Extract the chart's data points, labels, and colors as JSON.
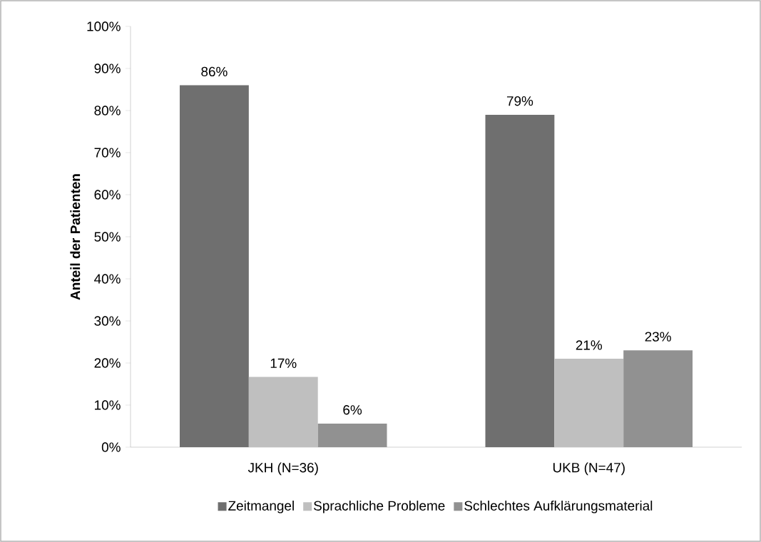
{
  "chart_data": {
    "type": "bar",
    "ylabel": "Anteil der Patienten",
    "categories": [
      "JKH (N=36)",
      "UKB (N=47)"
    ],
    "series": [
      {
        "name": "Zeitmangel",
        "color": "#6f6f6f",
        "values": [
          86,
          79
        ],
        "value_labels": [
          "86%",
          "79%"
        ]
      },
      {
        "name": "Sprachliche Probleme",
        "color": "#bfbfbf",
        "values": [
          16.7,
          21
        ],
        "value_labels": [
          "17%",
          "21%"
        ]
      },
      {
        "name": "Schlechtes Aufklärungsmaterial",
        "color": "#919191",
        "values": [
          5.6,
          23
        ],
        "value_labels": [
          "6%",
          "23%"
        ]
      }
    ],
    "ylim": [
      0,
      100
    ],
    "yticks": [
      {
        "value": 0,
        "label": "0%"
      },
      {
        "value": 10,
        "label": "10%"
      },
      {
        "value": 20,
        "label": "20%"
      },
      {
        "value": 30,
        "label": "30%"
      },
      {
        "value": 40,
        "label": "40%"
      },
      {
        "value": 50,
        "label": "50%"
      },
      {
        "value": 60,
        "label": "60%"
      },
      {
        "value": 70,
        "label": "70%"
      },
      {
        "value": 80,
        "label": "80%"
      },
      {
        "value": 90,
        "label": "90%"
      },
      {
        "value": 100,
        "label": "100%"
      }
    ],
    "legend": "bottom"
  }
}
